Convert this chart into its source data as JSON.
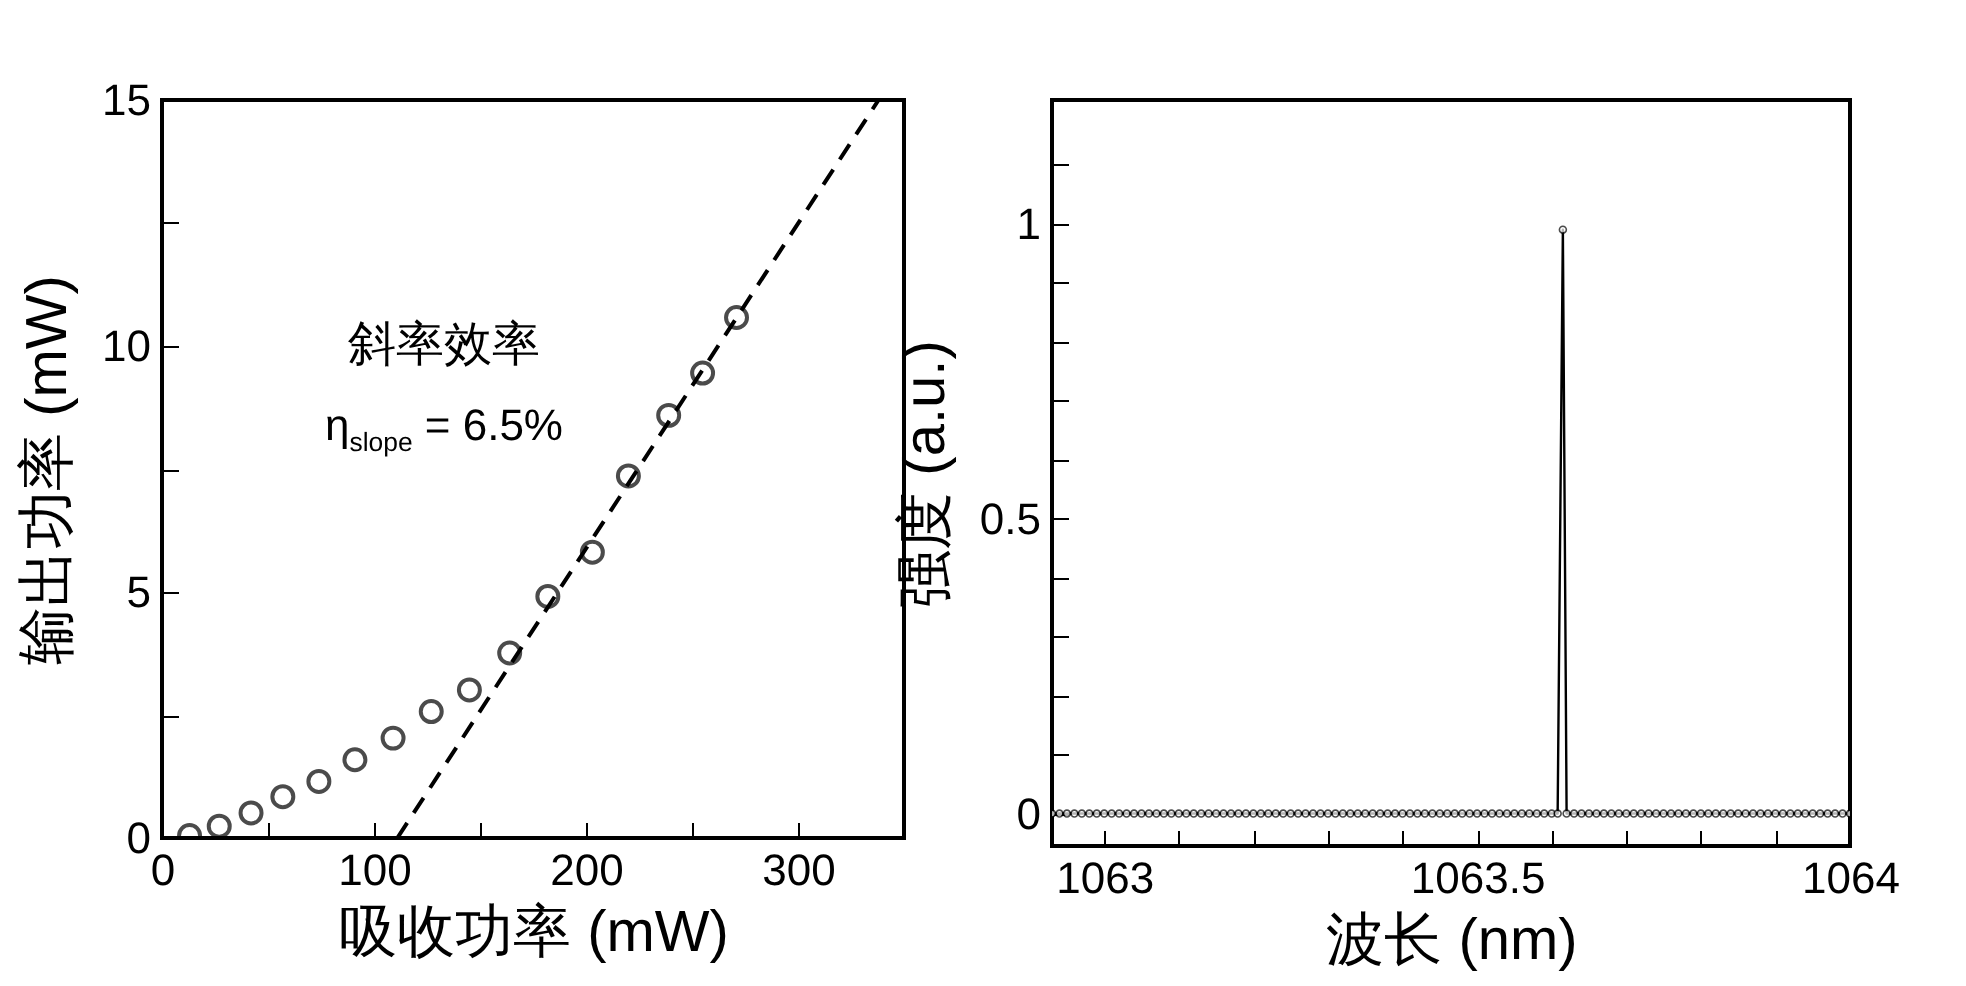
{
  "chart_data": [
    {
      "type": "scatter",
      "xlabel": "吸收功率 (mW)",
      "ylabel": "输出功率 (mW)",
      "xlim": [
        0,
        350
      ],
      "ylim": [
        0,
        15
      ],
      "xticks": [
        0,
        {
          "value": 50,
          "label": null
        },
        100,
        {
          "value": 150,
          "label": null
        },
        200,
        {
          "value": 250,
          "label": null
        },
        300
      ],
      "yticks": [
        0,
        {
          "value": 2.5,
          "label": null
        },
        5,
        {
          "value": 7.5,
          "label": null
        },
        10,
        {
          "value": 12.5,
          "label": null
        },
        15
      ],
      "marker": "circle",
      "annotations": [
        "斜率效率",
        "η$_{slope}$ = 6.5%"
      ],
      "series": [
        {
          "color": "#000000",
          "x": [
            13,
            27,
            42,
            57,
            74,
            91,
            109,
            127,
            145,
            164,
            182,
            203,
            220,
            239,
            255,
            271
          ],
          "values": [
            0.05,
            0.24,
            0.51,
            0.84,
            1.15,
            1.59,
            2.03,
            2.57,
            3.01,
            3.76,
            4.91,
            5.81,
            7.36,
            8.59,
            9.45,
            10.58
          ]
        },
        {
          "type": "line",
          "color": "#000000",
          "line_style": "dashed",
          "marker": "none",
          "x": [
            111,
            338
          ],
          "values": [
            0,
            15
          ]
        }
      ]
    },
    {
      "type": "line",
      "xlabel": "波长 (nm)",
      "ylabel": "强度 (a.u.)",
      "xlim": [
        1062.93,
        1064
      ],
      "ylim": [
        -0.055,
        1.21
      ],
      "xticks": [
        1063,
        {
          "value": 1063.1,
          "label": null
        },
        {
          "value": 1063.2,
          "label": null
        },
        {
          "value": 1063.3,
          "label": null
        },
        {
          "value": 1063.4,
          "label": null
        },
        1063.5,
        {
          "value": 1063.6,
          "label": null
        },
        {
          "value": 1063.7,
          "label": null
        },
        {
          "value": 1063.8,
          "label": null
        },
        {
          "value": 1063.9,
          "label": null
        },
        1064
      ],
      "yticks": [
        0,
        {
          "value": 0.1,
          "label": null
        },
        {
          "value": 0.2,
          "label": null
        },
        {
          "value": 0.3,
          "label": null
        },
        {
          "value": 0.4,
          "label": null
        },
        0.5,
        {
          "value": 0.6,
          "label": null
        },
        {
          "value": 0.7,
          "label": null
        },
        {
          "value": 0.8,
          "label": null
        },
        {
          "value": 0.9,
          "label": null
        },
        1,
        {
          "value": 1.1,
          "label": null
        }
      ],
      "marker": "circle",
      "series": [
        {
          "color": "#000000",
          "x": [
            1062.93,
            1062.94,
            1062.95,
            1062.96,
            1062.97,
            1062.98,
            1062.99,
            1063,
            1063.01,
            1063.02,
            1063.03,
            1063.04,
            1063.05,
            1063.06,
            1063.07,
            1063.08,
            1063.09,
            1063.1,
            1063.11,
            1063.12,
            1063.13,
            1063.14,
            1063.15,
            1063.16,
            1063.17,
            1063.18,
            1063.19,
            1063.2,
            1063.21,
            1063.22,
            1063.23,
            1063.24,
            1063.25,
            1063.26,
            1063.27,
            1063.28,
            1063.29,
            1063.3,
            1063.31,
            1063.32,
            1063.33,
            1063.34,
            1063.35,
            1063.36,
            1063.37,
            1063.38,
            1063.39,
            1063.4,
            1063.41,
            1063.42,
            1063.43,
            1063.44,
            1063.45,
            1063.46,
            1063.47,
            1063.48,
            1063.49,
            1063.5,
            1063.51,
            1063.52,
            1063.53,
            1063.54,
            1063.55,
            1063.56,
            1063.57,
            1063.58,
            1063.59,
            1063.6,
            1063.608,
            1063.615,
            1063.62,
            1063.63,
            1063.64,
            1063.65,
            1063.66,
            1063.67,
            1063.68,
            1063.69,
            1063.7,
            1063.71,
            1063.72,
            1063.73,
            1063.74,
            1063.75,
            1063.76,
            1063.77,
            1063.78,
            1063.79,
            1063.8,
            1063.81,
            1063.82,
            1063.83,
            1063.84,
            1063.85,
            1063.86,
            1063.87,
            1063.88,
            1063.89,
            1063.9,
            1063.91,
            1063.92,
            1063.93,
            1063.94,
            1063.95,
            1063.96,
            1063.97,
            1063.98,
            1063.99,
            1064
          ],
          "values": [
            0,
            0,
            0,
            0,
            0,
            0,
            0,
            0,
            0,
            0,
            0,
            0,
            0,
            0,
            0,
            0,
            0,
            0,
            0,
            0,
            0,
            0,
            0,
            0,
            0,
            0,
            0,
            0,
            0,
            0,
            0,
            0,
            0,
            0,
            0,
            0,
            0,
            0,
            0,
            0,
            0,
            0,
            0,
            0,
            0,
            0,
            0,
            0,
            0,
            0,
            0,
            0,
            0,
            0,
            0,
            0,
            0,
            0,
            0,
            0,
            0,
            0,
            0,
            0,
            0,
            0,
            0,
            0,
            0,
            0.99,
            0,
            0,
            0,
            0,
            0,
            0,
            0,
            0,
            0,
            0,
            0,
            0,
            0,
            0,
            0,
            0,
            0,
            0,
            0,
            0,
            0,
            0,
            0,
            0,
            0,
            0,
            0,
            0,
            0,
            0,
            0,
            0,
            0,
            0,
            0,
            0,
            0,
            0,
            0
          ]
        }
      ]
    }
  ]
}
